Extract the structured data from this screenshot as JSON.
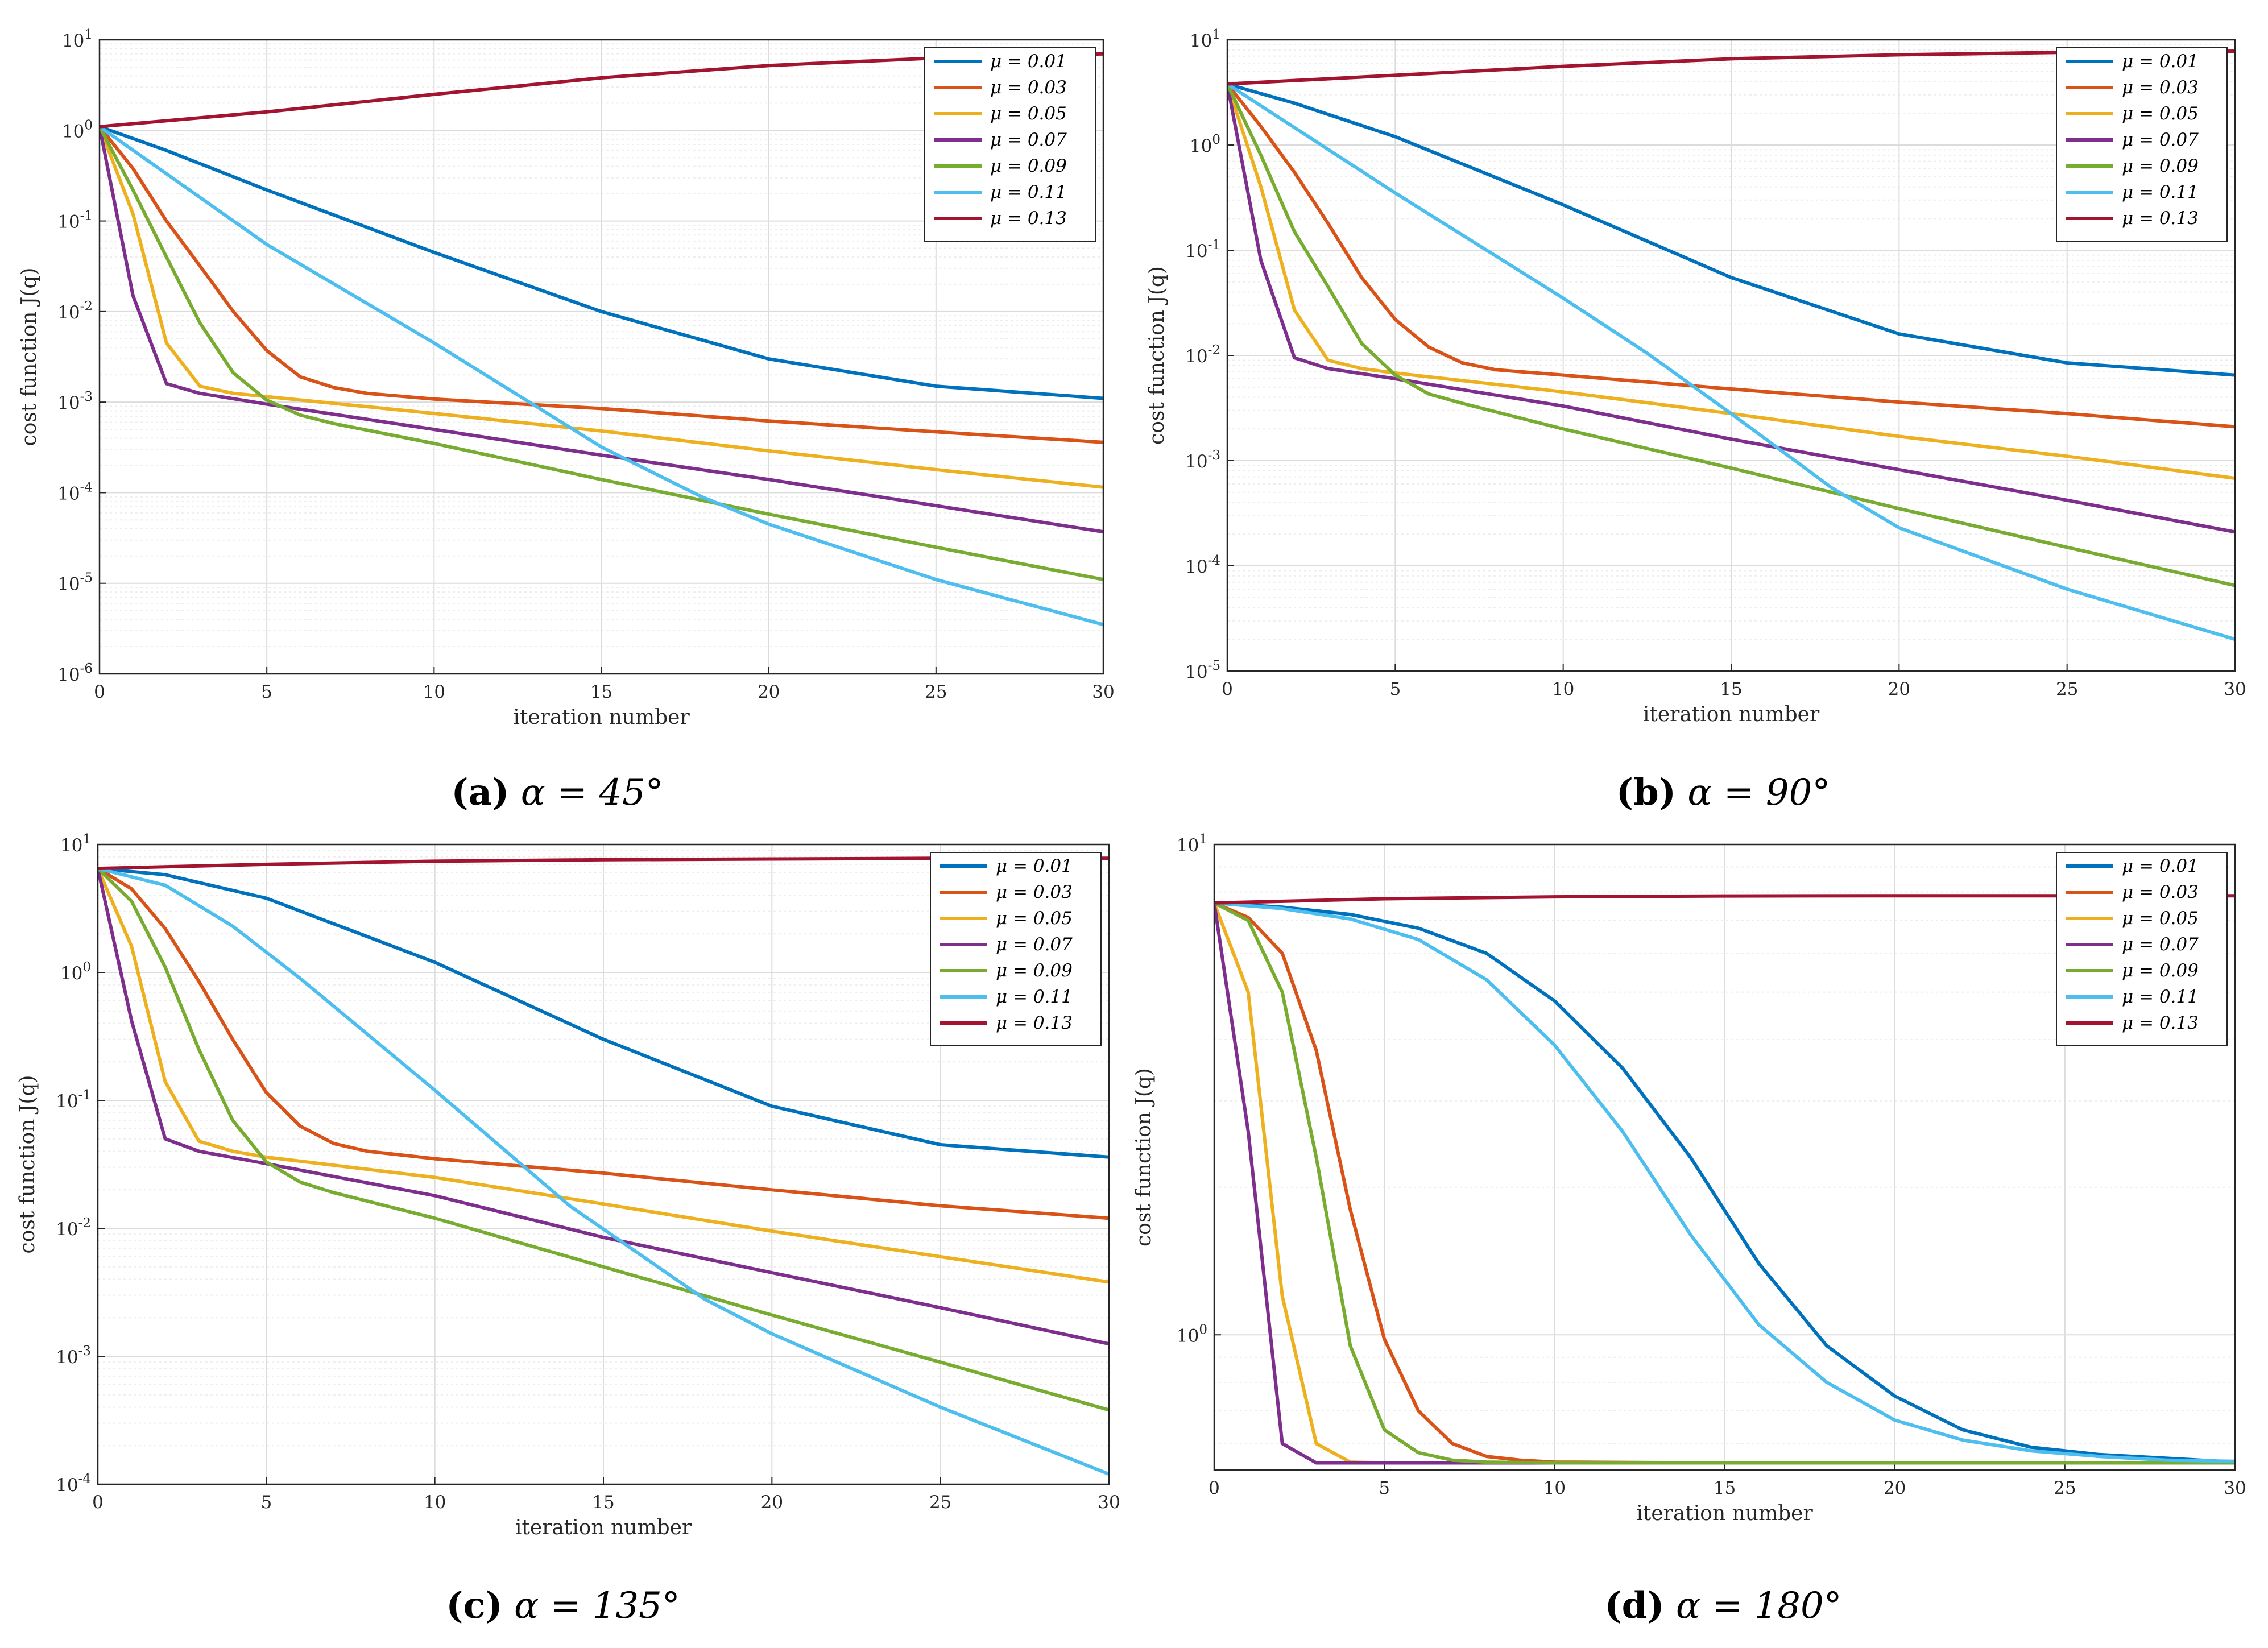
{
  "chart_data": [
    {
      "type": "line",
      "caption_letter": "(a)",
      "caption_text": "α = 45°",
      "xlabel": "iteration number",
      "ylabel": "cost function J(q)",
      "yscale": "log",
      "xlim": [
        0,
        30
      ],
      "ylim": [
        1e-06,
        10
      ],
      "grid": true,
      "legend_position": "top-right",
      "x_ticks": [
        "0",
        "5",
        "10",
        "15",
        "20",
        "25",
        "30"
      ],
      "y_ticks": [
        "10^-6",
        "10^-5",
        "10^-4",
        "10^-3",
        "10^-2",
        "10^-1",
        "10^0",
        "10^1"
      ],
      "series": [
        {
          "name": "μ = 0.01",
          "x": [
            0,
            2,
            5,
            10,
            15,
            20,
            25,
            30
          ],
          "values": [
            1.1,
            0.6,
            0.22,
            0.045,
            0.01,
            0.003,
            0.0015,
            0.0011
          ]
        },
        {
          "name": "μ = 0.03",
          "x": [
            0,
            1,
            2,
            3,
            4,
            5,
            6,
            7,
            8,
            10,
            15,
            20,
            25,
            30
          ],
          "values": [
            1.1,
            0.38,
            0.1,
            0.032,
            0.01,
            0.0037,
            0.0019,
            0.00145,
            0.00125,
            0.00108,
            0.00085,
            0.00062,
            0.00047,
            0.00036
          ]
        },
        {
          "name": "μ = 0.05",
          "x": [
            0,
            1,
            2,
            3,
            4,
            5,
            10,
            15,
            20,
            25,
            30
          ],
          "values": [
            1.1,
            0.12,
            0.0045,
            0.0015,
            0.00125,
            0.00115,
            0.00075,
            0.00048,
            0.00029,
            0.00018,
            0.000115
          ]
        },
        {
          "name": "μ = 0.07",
          "x": [
            0,
            1,
            2,
            3,
            5,
            10,
            15,
            20,
            25,
            30
          ],
          "values": [
            1.1,
            0.015,
            0.0016,
            0.00125,
            0.00095,
            0.0005,
            0.00026,
            0.00014,
            7.2e-05,
            3.7e-05
          ]
        },
        {
          "name": "μ = 0.09",
          "x": [
            0,
            1,
            2,
            3,
            4,
            5,
            6,
            7,
            10,
            15,
            20,
            25,
            30
          ],
          "values": [
            1.1,
            0.22,
            0.04,
            0.0075,
            0.0021,
            0.00105,
            0.00072,
            0.00058,
            0.00035,
            0.00014,
            5.8e-05,
            2.5e-05,
            1.1e-05
          ]
        },
        {
          "name": "μ = 0.11",
          "x": [
            0,
            5,
            10,
            12.5,
            15,
            18,
            20,
            25,
            30
          ],
          "values": [
            1.1,
            0.055,
            0.0045,
            0.0012,
            0.00032,
            9e-05,
            4.5e-05,
            1.1e-05,
            3.5e-06
          ]
        },
        {
          "name": "μ = 0.13",
          "x": [
            0,
            5,
            10,
            15,
            20,
            25,
            30
          ],
          "values": [
            1.1,
            1.6,
            2.5,
            3.8,
            5.2,
            6.3,
            7.0
          ]
        }
      ]
    },
    {
      "type": "line",
      "caption_letter": "(b)",
      "caption_text": "α = 90°",
      "xlabel": "iteration number",
      "ylabel": "cost function J(q)",
      "yscale": "log",
      "xlim": [
        0,
        30
      ],
      "ylim": [
        1e-05,
        10
      ],
      "grid": true,
      "legend_position": "top-right",
      "x_ticks": [
        "0",
        "5",
        "10",
        "15",
        "20",
        "25",
        "30"
      ],
      "y_ticks": [
        "10^-5",
        "10^-4",
        "10^-3",
        "10^-2",
        "10^-1",
        "10^0",
        "10^1"
      ],
      "series": [
        {
          "name": "μ = 0.01",
          "x": [
            0,
            2,
            5,
            10,
            15,
            20,
            25,
            30
          ],
          "values": [
            3.8,
            2.5,
            1.2,
            0.27,
            0.055,
            0.016,
            0.0085,
            0.0065
          ]
        },
        {
          "name": "μ = 0.03",
          "x": [
            0,
            1,
            2,
            3,
            4,
            5,
            6,
            7,
            8,
            10,
            15,
            20,
            25,
            30
          ],
          "values": [
            3.8,
            1.5,
            0.55,
            0.18,
            0.055,
            0.022,
            0.012,
            0.0085,
            0.0073,
            0.0065,
            0.0048,
            0.0036,
            0.0028,
            0.0021
          ]
        },
        {
          "name": "μ = 0.05",
          "x": [
            0,
            1,
            2,
            3,
            4,
            5,
            10,
            15,
            20,
            25,
            30
          ],
          "values": [
            3.8,
            0.4,
            0.027,
            0.009,
            0.0075,
            0.0068,
            0.0045,
            0.0028,
            0.0017,
            0.0011,
            0.00068
          ]
        },
        {
          "name": "μ = 0.07",
          "x": [
            0,
            1,
            2,
            3,
            5,
            10,
            15,
            20,
            25,
            30
          ],
          "values": [
            3.8,
            0.08,
            0.0095,
            0.0075,
            0.006,
            0.0033,
            0.0016,
            0.00082,
            0.00042,
            0.00021
          ]
        },
        {
          "name": "μ = 0.09",
          "x": [
            0,
            1,
            2,
            3,
            4,
            5,
            6,
            7,
            10,
            15,
            20,
            25,
            30
          ],
          "values": [
            3.8,
            0.8,
            0.15,
            0.045,
            0.013,
            0.0065,
            0.0043,
            0.0035,
            0.002,
            0.00085,
            0.00035,
            0.00015,
            6.5e-05
          ]
        },
        {
          "name": "μ = 0.11",
          "x": [
            0,
            5,
            10,
            12.5,
            15,
            18,
            20,
            25,
            30
          ],
          "values": [
            3.8,
            0.35,
            0.035,
            0.0105,
            0.0028,
            0.00055,
            0.00023,
            6e-05,
            2e-05
          ]
        },
        {
          "name": "μ = 0.13",
          "x": [
            0,
            5,
            10,
            15,
            20,
            25,
            30
          ],
          "values": [
            3.8,
            4.6,
            5.6,
            6.6,
            7.2,
            7.6,
            7.8
          ]
        }
      ]
    },
    {
      "type": "line",
      "caption_letter": "(c)",
      "caption_text": "α = 135°",
      "xlabel": "iteration number",
      "ylabel": "cost function J(q)",
      "yscale": "log",
      "xlim": [
        0,
        30
      ],
      "ylim": [
        0.0001,
        10
      ],
      "grid": true,
      "legend_position": "top-right",
      "x_ticks": [
        "0",
        "5",
        "10",
        "15",
        "20",
        "25",
        "30"
      ],
      "y_ticks": [
        "10^-4",
        "10^-3",
        "10^-2",
        "10^-1",
        "10^0",
        "10^1"
      ],
      "series": [
        {
          "name": "μ = 0.01",
          "x": [
            0,
            2,
            5,
            10,
            15,
            20,
            25,
            30
          ],
          "values": [
            6.5,
            5.8,
            3.8,
            1.2,
            0.3,
            0.09,
            0.045,
            0.036
          ]
        },
        {
          "name": "μ = 0.03",
          "x": [
            0,
            1,
            2,
            3,
            4,
            5,
            6,
            7,
            8,
            10,
            15,
            20,
            25,
            30
          ],
          "values": [
            6.5,
            4.5,
            2.2,
            0.85,
            0.3,
            0.115,
            0.063,
            0.046,
            0.04,
            0.035,
            0.027,
            0.02,
            0.015,
            0.012
          ]
        },
        {
          "name": "μ = 0.05",
          "x": [
            0,
            1,
            2,
            3,
            4,
            5,
            10,
            15,
            20,
            25,
            30
          ],
          "values": [
            6.5,
            1.6,
            0.14,
            0.048,
            0.04,
            0.036,
            0.025,
            0.0155,
            0.0095,
            0.006,
            0.0038
          ]
        },
        {
          "name": "μ = 0.07",
          "x": [
            0,
            1,
            2,
            3,
            5,
            10,
            15,
            20,
            25,
            30
          ],
          "values": [
            6.5,
            0.42,
            0.05,
            0.04,
            0.032,
            0.018,
            0.0085,
            0.0045,
            0.0024,
            0.00125
          ]
        },
        {
          "name": "μ = 0.09",
          "x": [
            0,
            1,
            2,
            3,
            4,
            5,
            6,
            7,
            10,
            15,
            20,
            25,
            30
          ],
          "values": [
            6.5,
            3.6,
            1.1,
            0.25,
            0.07,
            0.033,
            0.023,
            0.019,
            0.012,
            0.005,
            0.0021,
            0.0009,
            0.00038
          ]
        },
        {
          "name": "μ = 0.11",
          "x": [
            0,
            2,
            4,
            6,
            10,
            14,
            18,
            20,
            25,
            30
          ],
          "values": [
            6.5,
            4.8,
            2.3,
            0.9,
            0.12,
            0.015,
            0.0028,
            0.0015,
            0.0004,
            0.00012
          ]
        },
        {
          "name": "μ = 0.13",
          "x": [
            0,
            5,
            10,
            15,
            20,
            25,
            30
          ],
          "values": [
            6.5,
            7.0,
            7.4,
            7.6,
            7.7,
            7.8,
            7.8
          ]
        }
      ]
    },
    {
      "type": "line",
      "caption_letter": "(d)",
      "caption_text": "α = 180°",
      "xlabel": "iteration number",
      "ylabel": "cost function J(q)",
      "yscale": "log",
      "xlim": [
        0,
        30
      ],
      "ylim": [
        0.53,
        10
      ],
      "grid": true,
      "legend_position": "top-right",
      "x_ticks": [
        "0",
        "5",
        "10",
        "15",
        "20",
        "25",
        "30"
      ],
      "y_ticks": [
        "10^0",
        "10^1"
      ],
      "series": [
        {
          "name": "μ = 0.01",
          "x": [
            0,
            2,
            4,
            6,
            8,
            10,
            12,
            14,
            16,
            18,
            20,
            22,
            24,
            26,
            28,
            30
          ],
          "values": [
            7.6,
            7.45,
            7.2,
            6.75,
            6.0,
            4.8,
            3.5,
            2.3,
            1.4,
            0.95,
            0.75,
            0.64,
            0.59,
            0.57,
            0.56,
            0.55
          ]
        },
        {
          "name": "μ = 0.03",
          "x": [
            0,
            1,
            2,
            3,
            4,
            5,
            6,
            7,
            8,
            9,
            10,
            15,
            20,
            30
          ],
          "values": [
            7.6,
            7.1,
            6.0,
            3.8,
            1.8,
            0.98,
            0.7,
            0.6,
            0.565,
            0.555,
            0.55,
            0.548,
            0.548,
            0.548
          ]
        },
        {
          "name": "μ = 0.05",
          "x": [
            0,
            1,
            2,
            3,
            4,
            5,
            10,
            30
          ],
          "values": [
            7.6,
            5.0,
            1.2,
            0.6,
            0.55,
            0.548,
            0.548,
            0.548
          ]
        },
        {
          "name": "μ = 0.07",
          "x": [
            0,
            1,
            2,
            3,
            4,
            10,
            30
          ],
          "values": [
            7.6,
            2.6,
            0.6,
            0.548,
            0.548,
            0.548,
            0.548
          ]
        },
        {
          "name": "μ = 0.09",
          "x": [
            0,
            1,
            2,
            3,
            4,
            5,
            6,
            7,
            8,
            10,
            15,
            30
          ],
          "values": [
            7.6,
            7.0,
            5.0,
            2.3,
            0.95,
            0.64,
            0.575,
            0.555,
            0.55,
            0.548,
            0.548,
            0.548
          ]
        },
        {
          "name": "μ = 0.11",
          "x": [
            0,
            2,
            4,
            6,
            8,
            10,
            12,
            14,
            16,
            18,
            20,
            22,
            24,
            26,
            28,
            30
          ],
          "values": [
            7.6,
            7.4,
            7.05,
            6.4,
            5.3,
            3.9,
            2.6,
            1.6,
            1.05,
            0.8,
            0.67,
            0.61,
            0.58,
            0.565,
            0.555,
            0.552
          ]
        },
        {
          "name": "μ = 0.13",
          "x": [
            0,
            5,
            10,
            15,
            20,
            25,
            30
          ],
          "values": [
            7.6,
            7.75,
            7.82,
            7.85,
            7.86,
            7.86,
            7.86
          ]
        }
      ]
    }
  ],
  "colors": {
    "series": [
      "#0072BD",
      "#D95319",
      "#EDB120",
      "#7E2F8E",
      "#77AC30",
      "#4DBEEE",
      "#A2142F"
    ],
    "grid_major": "#dcdcdc",
    "grid_minor": "#eeeeee",
    "axis": "#262626"
  }
}
